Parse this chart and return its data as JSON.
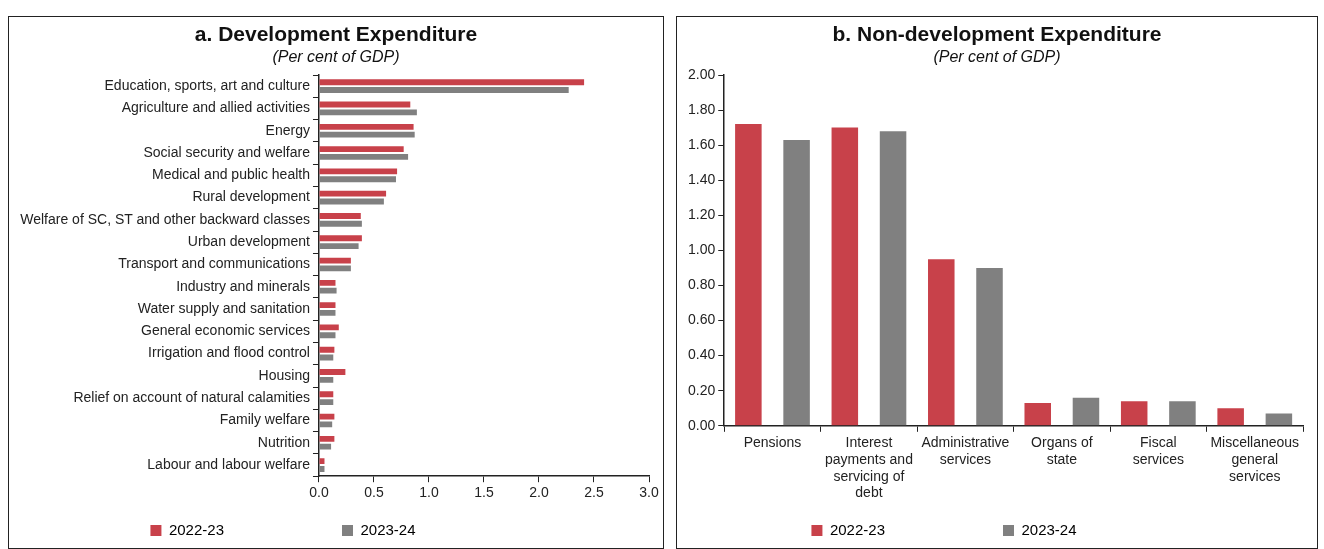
{
  "chart_data": [
    {
      "type": "bar",
      "orientation": "horizontal",
      "title": "a. Development Expenditure",
      "subtitle": "(Per cent of GDP)",
      "categories": [
        "Education, sports, art and culture",
        "Agriculture and allied activities",
        "Energy",
        "Social security and welfare",
        "Medical and public health",
        "Rural development",
        "Welfare of SC, ST and other backward classes",
        "Urban development",
        "Transport and communications",
        "Industry and minerals",
        "Water supply and sanitation",
        "General economic services",
        "Irrigation and flood control",
        "Housing",
        "Relief on account of natural calamities",
        "Family welfare",
        "Nutrition",
        "Labour and labour welfare"
      ],
      "series": [
        {
          "name": "2022-23",
          "color": "#c8414a",
          "values": [
            2.41,
            0.83,
            0.86,
            0.77,
            0.71,
            0.61,
            0.38,
            0.39,
            0.29,
            0.15,
            0.15,
            0.18,
            0.14,
            0.24,
            0.13,
            0.14,
            0.14,
            0.05
          ]
        },
        {
          "name": "2023-24",
          "color": "#808080",
          "values": [
            2.27,
            0.89,
            0.87,
            0.81,
            0.7,
            0.59,
            0.39,
            0.36,
            0.29,
            0.16,
            0.15,
            0.15,
            0.13,
            0.13,
            0.13,
            0.12,
            0.11,
            0.05
          ]
        }
      ],
      "xlim": [
        0,
        3
      ],
      "xticks": [
        {
          "value": 0,
          "label": "0.0"
        },
        {
          "value": 0.5,
          "label": "0.5"
        },
        {
          "value": 1,
          "label": "1.0"
        },
        {
          "value": 1.5,
          "label": "1.5"
        },
        {
          "value": 2,
          "label": "2.0"
        },
        {
          "value": 2.5,
          "label": "2.5"
        },
        {
          "value": 3,
          "label": "3.0"
        }
      ],
      "grid": false,
      "legend": "bottom"
    },
    {
      "type": "bar",
      "title": "b. Non-development Expenditure",
      "subtitle": "(Per cent of GDP)",
      "categories": [
        "Pensions",
        "Interest payments and servicing of debt",
        "Administrative services",
        "Organs of state",
        "Fiscal services",
        "Miscellaneous general services"
      ],
      "series": [
        {
          "name": "2022-23",
          "color": "#c8414a",
          "values": [
            1.72,
            1.7,
            0.95,
            0.13,
            0.14,
            0.1
          ]
        },
        {
          "name": "2023-24",
          "color": "#808080",
          "values": [
            1.63,
            1.68,
            0.9,
            0.16,
            0.14,
            0.07
          ]
        }
      ],
      "ylim": [
        0,
        2
      ],
      "yticks": [
        {
          "value": 0,
          "label": "0.00"
        },
        {
          "value": 0.2,
          "label": "0.20"
        },
        {
          "value": 0.4,
          "label": "0.40"
        },
        {
          "value": 0.6,
          "label": "0.60"
        },
        {
          "value": 0.8,
          "label": "0.80"
        },
        {
          "value": 1,
          "label": "1.00"
        },
        {
          "value": 1.2,
          "label": "1.20"
        },
        {
          "value": 1.4,
          "label": "1.40"
        },
        {
          "value": 1.6,
          "label": "1.60"
        },
        {
          "value": 1.8,
          "label": "1.80"
        },
        {
          "value": 2,
          "label": "2.00"
        }
      ],
      "grid": false,
      "legend": "bottom"
    }
  ]
}
